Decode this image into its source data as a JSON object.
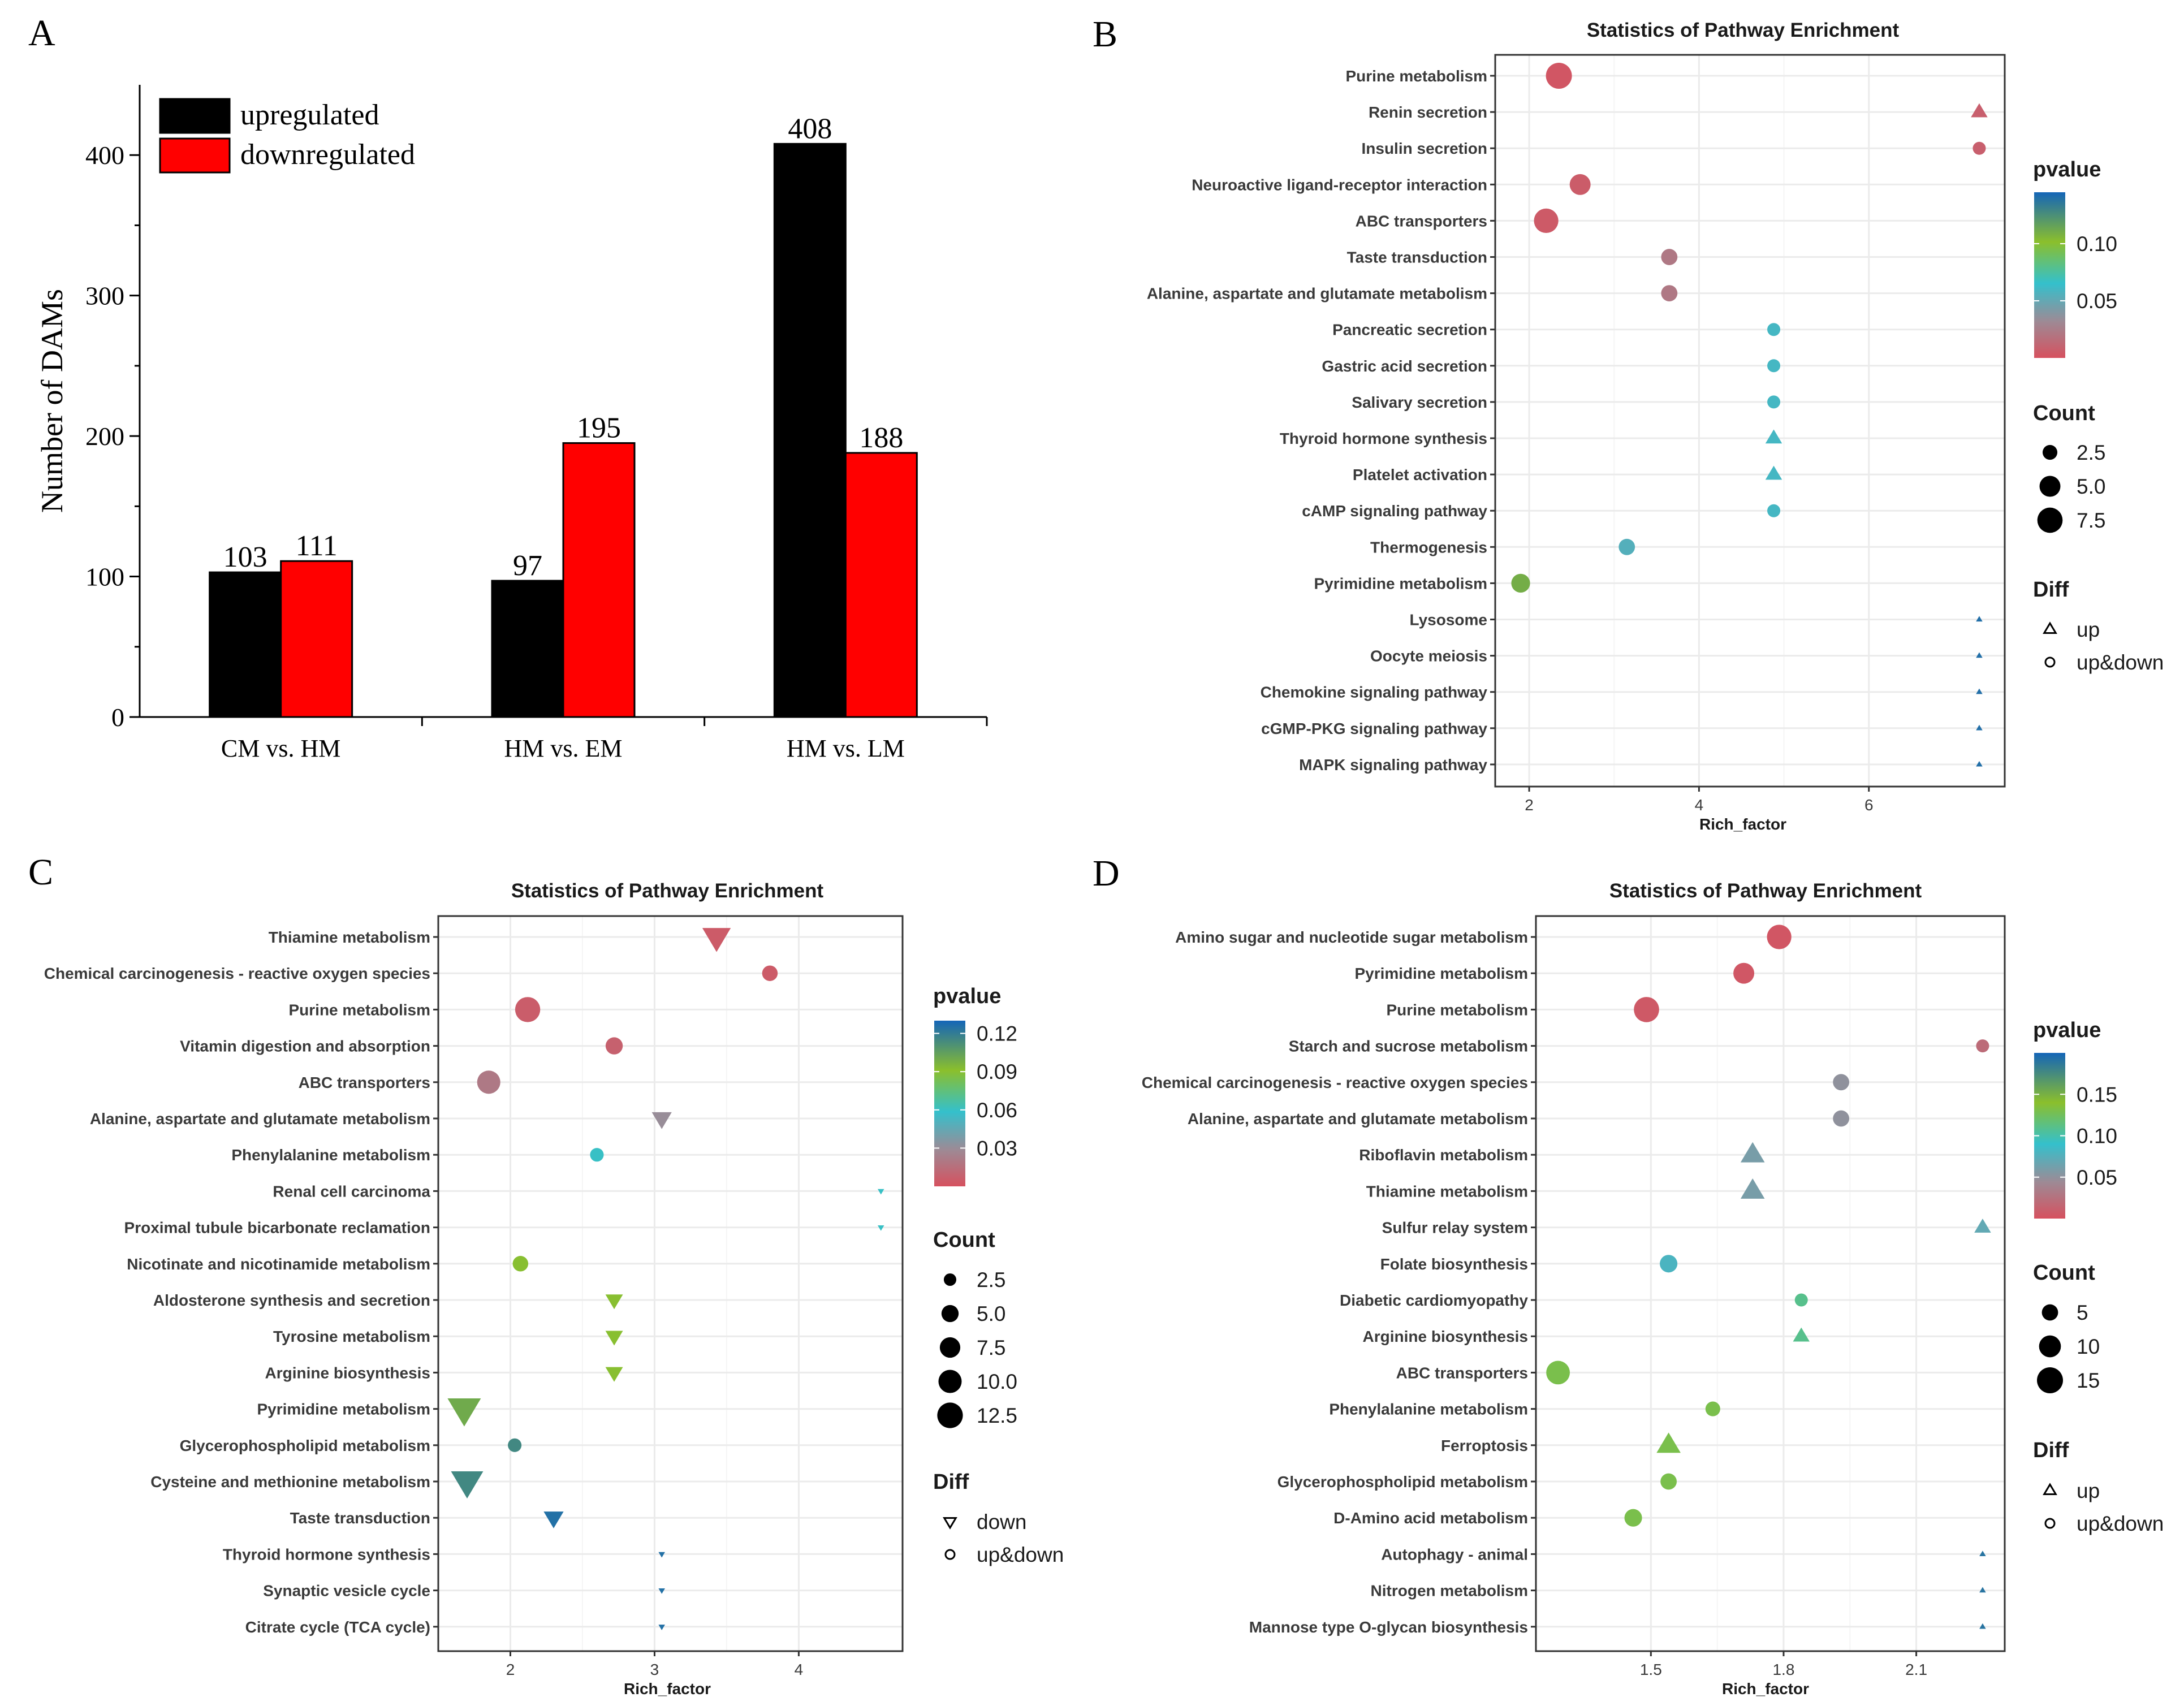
{
  "panels": {
    "A": "A",
    "B": "B",
    "C": "C",
    "D": "D"
  },
  "chart_data": [
    {
      "type": "bar",
      "panel": "A",
      "categories": [
        "CM vs. HM",
        "HM vs. EM",
        "HM vs. LM"
      ],
      "series": [
        {
          "name": "upregulated",
          "color": "#000000",
          "values": [
            103,
            97,
            408
          ]
        },
        {
          "name": "downregulated",
          "color": "#ff0000",
          "values": [
            111,
            195,
            188
          ]
        }
      ],
      "ylabel": "Number of DAMs",
      "ylim": [
        0,
        450
      ],
      "yticks": [
        0,
        100,
        200,
        300,
        400
      ],
      "legend_position": "top-left"
    },
    {
      "type": "scatter",
      "panel": "B",
      "title": "Statistics of Pathway Enrichment",
      "xlabel": "Rich_factor",
      "xlim": [
        1.6,
        7.6
      ],
      "xticks": [
        2,
        4,
        6
      ],
      "categories": [
        "Purine metabolism",
        "Renin secretion",
        "Insulin secretion",
        "Neuroactive ligand-receptor interaction",
        "ABC transporters",
        "Taste transduction",
        "Alanine, aspartate and glutamate metabolism",
        "Pancreatic secretion",
        "Gastric acid secretion",
        "Salivary secretion",
        "Thyroid hormone synthesis",
        "Platelet activation",
        "cAMP signaling pathway",
        "Thermogenesis",
        "Pyrimidine metabolism",
        "Lysosome",
        "Oocyte meiosis",
        "Chemokine signaling pathway",
        "cGMP-PKG signaling pathway",
        "MAPK signaling pathway"
      ],
      "rich_factor": [
        2.35,
        7.3,
        7.3,
        2.6,
        2.2,
        3.65,
        3.65,
        4.88,
        4.88,
        4.88,
        4.88,
        4.88,
        4.88,
        3.15,
        1.9,
        7.3,
        7.3,
        7.3,
        7.3,
        7.3
      ],
      "pvalue": [
        0.003,
        0.008,
        0.008,
        0.006,
        0.005,
        0.022,
        0.022,
        0.06,
        0.06,
        0.06,
        0.06,
        0.06,
        0.06,
        0.055,
        0.11,
        0.14,
        0.14,
        0.14,
        0.14,
        0.14
      ],
      "count": [
        8,
        2,
        2,
        5,
        7,
        3,
        3,
        2,
        2,
        2,
        2,
        2,
        2,
        3,
        4,
        1,
        1,
        1,
        1,
        1
      ],
      "diff": [
        "up&down",
        "up",
        "up&down",
        "up&down",
        "up&down",
        "up&down",
        "up&down",
        "up&down",
        "up&down",
        "up&down",
        "up",
        "up",
        "up&down",
        "up&down",
        "up&down",
        "up",
        "up",
        "up",
        "up",
        "up"
      ],
      "color_title": "pvalue",
      "color_ticks": [
        0.05,
        0.1
      ],
      "color_tick_labels": [
        "0.05",
        "0.10"
      ],
      "color_range": [
        0,
        0.145
      ],
      "count_title": "Count",
      "count_breaks": [
        2.5,
        5.0,
        7.5
      ],
      "count_labels": [
        "2.5",
        "5.0",
        "7.5"
      ],
      "count_range": [
        1,
        8
      ],
      "diff_title": "Diff",
      "diff_labels": [
        "up",
        "up&down"
      ]
    },
    {
      "type": "scatter",
      "panel": "C",
      "title": "Statistics of Pathway Enrichment",
      "xlabel": "Rich_factor",
      "xlim": [
        1.5,
        4.72
      ],
      "xticks": [
        2,
        3,
        4
      ],
      "categories": [
        "Thiamine metabolism",
        "Chemical carcinogenesis - reactive oxygen species",
        "Purine metabolism",
        "Vitamin digestion and absorption",
        "ABC transporters",
        "Alanine, aspartate and glutamate metabolism",
        "Phenylalanine metabolism",
        "Renal cell carcinoma",
        "Proximal tubule bicarbonate reclamation",
        "Nicotinate and nicotinamide metabolism",
        "Aldosterone synthesis and secretion",
        "Tyrosine metabolism",
        "Arginine biosynthesis",
        "Pyrimidine metabolism",
        "Glycerophospholipid metabolism",
        "Cysteine and methionine metabolism",
        "Taste transduction",
        "Thyroid hormone synthesis",
        "Synaptic vesicle cycle",
        "Citrate cycle (TCA cycle)"
      ],
      "rich_factor": [
        3.43,
        3.8,
        2.12,
        2.72,
        1.85,
        3.05,
        2.6,
        4.57,
        4.57,
        2.07,
        2.72,
        2.72,
        2.72,
        1.68,
        2.03,
        1.7,
        2.3,
        3.05,
        3.05,
        3.05
      ],
      "pvalue": [
        0.005,
        0.005,
        0.006,
        0.008,
        0.02,
        0.03,
        0.06,
        0.06,
        0.06,
        0.09,
        0.09,
        0.09,
        0.09,
        0.1,
        0.115,
        0.115,
        0.125,
        0.125,
        0.125,
        0.125
      ],
      "count": [
        9,
        4,
        12,
        5,
        10,
        4,
        3,
        1,
        1,
        4,
        3,
        3,
        3,
        13,
        3,
        12,
        4,
        1,
        1,
        1
      ],
      "diff": [
        "down",
        "up&down",
        "up&down",
        "up&down",
        "up&down",
        "down",
        "up&down",
        "down",
        "down",
        "up&down",
        "down",
        "down",
        "down",
        "down",
        "up&down",
        "down",
        "down",
        "down",
        "down",
        "down"
      ],
      "color_title": "pvalue",
      "color_ticks": [
        0.03,
        0.06,
        0.09,
        0.12
      ],
      "color_tick_labels": [
        "0.03",
        "0.06",
        "0.09",
        "0.12"
      ],
      "color_range": [
        0,
        0.13
      ],
      "count_title": "Count",
      "count_breaks": [
        2.5,
        5.0,
        7.5,
        10.0,
        12.5
      ],
      "count_labels": [
        "2.5",
        "5.0",
        "7.5",
        "10.0",
        "12.5"
      ],
      "count_range": [
        1,
        13
      ],
      "diff_title": "Diff",
      "diff_labels": [
        "down",
        "up&down"
      ]
    },
    {
      "type": "scatter",
      "panel": "D",
      "title": "Statistics of Pathway Enrichment",
      "xlabel": "Rich_factor",
      "xlim": [
        1.24,
        2.3
      ],
      "xticks": [
        1.5,
        1.8,
        2.1
      ],
      "xtick_labels": [
        "1.5",
        "1.8",
        "2.1"
      ],
      "categories": [
        "Amino sugar and nucleotide sugar metabolism",
        "Pyrimidine metabolism",
        "Purine metabolism",
        "Starch and sucrose metabolism",
        "Chemical carcinogenesis - reactive oxygen species",
        "Alanine, aspartate and glutamate metabolism",
        "Riboflavin metabolism",
        "Thiamine metabolism",
        "Sulfur relay system",
        "Folate biosynthesis",
        "Diabetic cardiomyopathy",
        "Arginine biosynthesis",
        "ABC transporters",
        "Phenylalanine metabolism",
        "Ferroptosis",
        "Glycerophospholipid metabolism",
        "D-Amino acid metabolism",
        "Autophagy - animal",
        "Nitrogen metabolism",
        "Mannose type O-glycan biosynthesis"
      ],
      "rich_factor": [
        1.79,
        1.71,
        1.49,
        2.25,
        1.93,
        1.93,
        1.73,
        1.73,
        2.25,
        1.54,
        1.84,
        1.84,
        1.29,
        1.64,
        1.54,
        1.54,
        1.46,
        2.25,
        2.25,
        2.25
      ],
      "pvalue": [
        0.004,
        0.005,
        0.006,
        0.02,
        0.05,
        0.05,
        0.06,
        0.06,
        0.07,
        0.08,
        0.11,
        0.11,
        0.13,
        0.13,
        0.13,
        0.13,
        0.13,
        0.19,
        0.19,
        0.19
      ],
      "count": [
        13,
        9,
        14,
        3,
        5,
        5,
        7,
        7,
        3,
        6,
        3,
        3,
        12,
        4,
        7,
        5,
        6,
        1,
        1,
        1
      ],
      "diff": [
        "up&down",
        "up&down",
        "up&down",
        "up&down",
        "up&down",
        "up&down",
        "up",
        "up",
        "up",
        "up&down",
        "up&down",
        "up",
        "up&down",
        "up&down",
        "up",
        "up&down",
        "up&down",
        "up",
        "up",
        "up"
      ],
      "color_title": "pvalue",
      "color_ticks": [
        0.05,
        0.1,
        0.15
      ],
      "color_tick_labels": [
        "0.05",
        "0.10",
        "0.15"
      ],
      "color_range": [
        0,
        0.2
      ],
      "count_title": "Count",
      "count_breaks": [
        5,
        10,
        15
      ],
      "count_labels": [
        "5",
        "10",
        "15"
      ],
      "count_range": [
        1,
        15
      ],
      "diff_title": "Diff",
      "diff_labels": [
        "up",
        "up&down"
      ]
    }
  ]
}
